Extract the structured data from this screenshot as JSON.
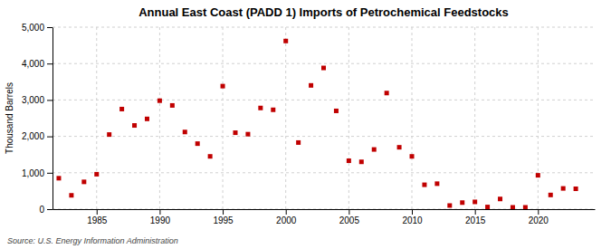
{
  "chart_data": {
    "type": "scatter",
    "title": "Annual East Coast (PADD 1) Imports of Petrochemical Feedstocks",
    "ylabel": "Thousand Barrels",
    "source": "Source: U.S. Energy Information Administration",
    "color": "#c00000",
    "marker": "square",
    "grid": true,
    "xlim": [
      1981.5,
      2024.5
    ],
    "ylim": [
      0,
      5000
    ],
    "xticks": [
      1985,
      1990,
      1995,
      2000,
      2005,
      2010,
      2015,
      2020
    ],
    "yticks": [
      0,
      {
        "value": 1000,
        "label": "1,000"
      },
      {
        "value": 2000,
        "label": "2,000"
      },
      {
        "value": 3000,
        "label": "3,000"
      },
      {
        "value": 4000,
        "label": "4,000"
      },
      {
        "value": 5000,
        "label": "5,000"
      }
    ],
    "x": [
      1982,
      1983,
      1984,
      1985,
      1986,
      1987,
      1988,
      1989,
      1990,
      1991,
      1992,
      1993,
      1994,
      1995,
      1996,
      1997,
      1998,
      1999,
      2000,
      2001,
      2002,
      2003,
      2004,
      2005,
      2006,
      2007,
      2008,
      2009,
      2010,
      2011,
      2012,
      2013,
      2014,
      2015,
      2016,
      2017,
      2018,
      2019,
      2020,
      2021,
      2022,
      2023
    ],
    "values": [
      850,
      380,
      750,
      960,
      2050,
      2750,
      2300,
      2480,
      2980,
      2850,
      2120,
      1800,
      1450,
      3380,
      2100,
      2060,
      2780,
      2730,
      4620,
      1830,
      3400,
      3880,
      2700,
      1330,
      1300,
      1640,
      3190,
      1700,
      1450,
      670,
      700,
      100,
      180,
      200,
      60,
      280,
      50,
      50,
      930,
      390,
      570,
      560
    ]
  }
}
